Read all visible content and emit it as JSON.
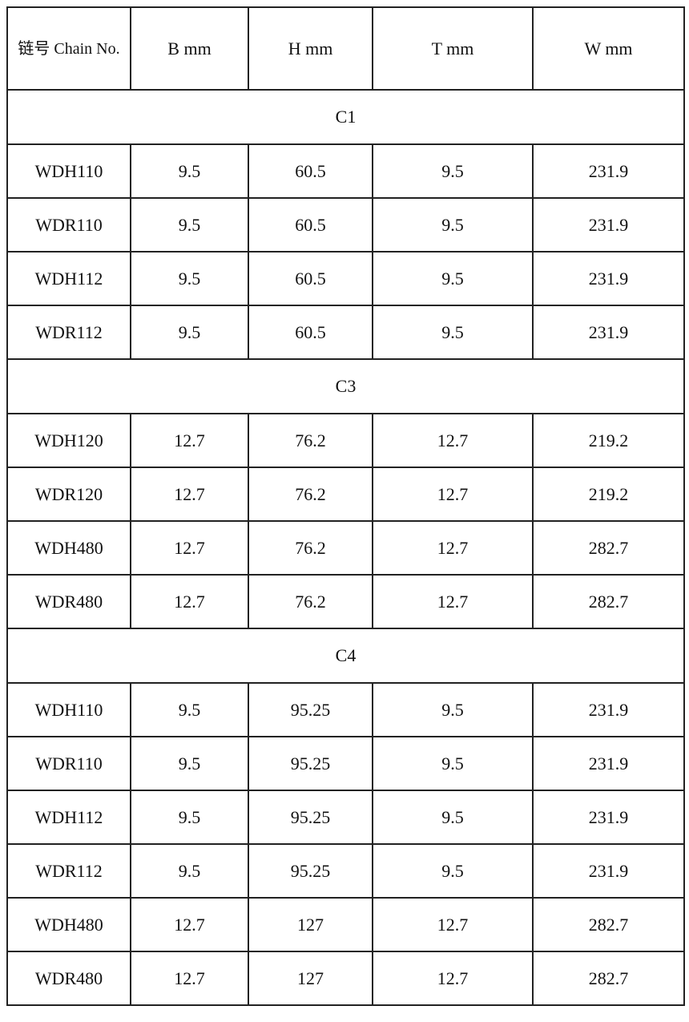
{
  "table": {
    "header": [
      "链号 Chain No.",
      "B mm",
      "H mm",
      "T mm",
      "W mm"
    ],
    "sections": [
      {
        "name": "C1",
        "rows": [
          [
            "WDH110",
            "9.5",
            "60.5",
            "9.5",
            "231.9"
          ],
          [
            "WDR110",
            "9.5",
            "60.5",
            "9.5",
            "231.9"
          ],
          [
            "WDH112",
            "9.5",
            "60.5",
            "9.5",
            "231.9"
          ],
          [
            "WDR112",
            "9.5",
            "60.5",
            "9.5",
            "231.9"
          ]
        ]
      },
      {
        "name": "C3",
        "rows": [
          [
            "WDH120",
            "12.7",
            "76.2",
            "12.7",
            "219.2"
          ],
          [
            "WDR120",
            "12.7",
            "76.2",
            "12.7",
            "219.2"
          ],
          [
            "WDH480",
            "12.7",
            "76.2",
            "12.7",
            "282.7"
          ],
          [
            "WDR480",
            "12.7",
            "76.2",
            "12.7",
            "282.7"
          ]
        ]
      },
      {
        "name": "C4",
        "rows": [
          [
            "WDH110",
            "9.5",
            "95.25",
            "9.5",
            "231.9"
          ],
          [
            "WDR110",
            "9.5",
            "95.25",
            "9.5",
            "231.9"
          ],
          [
            "WDH112",
            "9.5",
            "95.25",
            "9.5",
            "231.9"
          ],
          [
            "WDR112",
            "9.5",
            "95.25",
            "9.5",
            "231.9"
          ],
          [
            "WDH480",
            "12.7",
            "127",
            "12.7",
            "282.7"
          ],
          [
            "WDR480",
            "12.7",
            "127",
            "12.7",
            "282.7"
          ]
        ]
      }
    ]
  }
}
